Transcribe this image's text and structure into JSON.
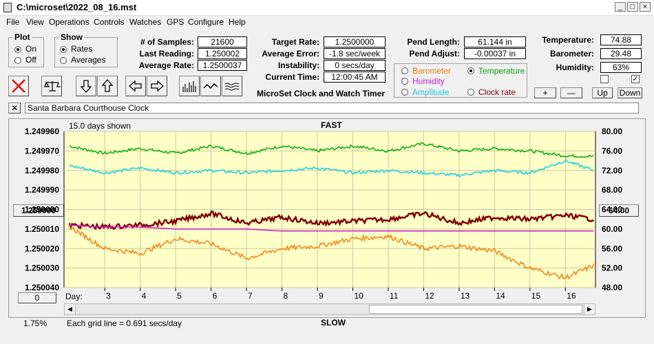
{
  "window": {
    "title": "C:\\microset\\2022_08_16.mst"
  },
  "menu": [
    "File",
    "View",
    "Operations",
    "Controls",
    "Watches",
    "GPS",
    "Configure",
    "Help"
  ],
  "plot_group": {
    "title": "Plot",
    "on": "On",
    "off": "Off",
    "selected": "On"
  },
  "show_group": {
    "title": "Show",
    "rates": "Rates",
    "averages": "Averages",
    "selected": "Rates"
  },
  "stats": {
    "samples_label": "# of Samples:",
    "samples": "21600",
    "last_label": "Last Reading:",
    "last": "1.250002",
    "avg_label": "Average Rate:",
    "avg": "1.2500037",
    "target_label": "Target Rate:",
    "target": "1.2500000",
    "avg_err_label": "Average Error:",
    "avg_err": "-1.8 sec/week",
    "instab_label": "Instability:",
    "instab": "0 secs/day",
    "time_label": "Current Time:",
    "time": "12:00:45 AM",
    "pend_len_label": "Pend Length:",
    "pend_len": "61.144 in",
    "pend_adj_label": "Pend Adjust:",
    "pend_adj": "-0.00037 in",
    "temp_label": "Temperature:",
    "temp": "74.88",
    "baro_label": "Barometer:",
    "baro": "29.48",
    "hum_label": "Humidity:",
    "hum": "63%"
  },
  "app_caption": "MicroSet Clock and Watch Timer",
  "aux_options": [
    {
      "label": "Barometer",
      "color": "#e07f10",
      "selected": false
    },
    {
      "label": "Temperature",
      "color": "#10a010",
      "selected": true
    },
    {
      "label": "Humidity",
      "color": "#c020c0",
      "selected": false
    },
    {
      "label": "Clock rate",
      "color": "#800000",
      "selected": false
    },
    {
      "label": "Amplitude",
      "color": "#20c8d8",
      "selected": false
    }
  ],
  "scale_buttons": [
    "+",
    "—",
    "Up",
    "Down"
  ],
  "checkboxes": [
    "",
    "✓"
  ],
  "watch_name": "Santa Barbara Courthouse Clock",
  "close_x": "✕",
  "graph": {
    "top_label": "FAST",
    "bottom_label": "SLOW",
    "days_shown": "15.0 days shown",
    "grid_note": "Each grid line = 0.691 secs/day",
    "left_button": "1.250000",
    "right_button": "64.00",
    "zero_button": "0",
    "percent": "1.75%",
    "day_label": "Day:",
    "left_ticks": [
      "1.249960",
      "1.249970",
      "1.249980",
      "1.249990",
      "1.250000",
      "1.250010",
      "1.250020",
      "1.250030",
      "1.250040"
    ],
    "right_ticks": [
      "80.00",
      "76.00",
      "72.00",
      "68.00",
      "64.00",
      "60.00",
      "56.00",
      "52.00",
      "48.00"
    ],
    "days": [
      "3",
      "4",
      "5",
      "6",
      "7",
      "8",
      "9",
      "10",
      "11",
      "12",
      "13",
      "14",
      "15",
      "16"
    ]
  },
  "chart_data": {
    "type": "line",
    "title": "",
    "xlabel": "Day:",
    "x_range": [
      1.85,
      16.85
    ],
    "ylim_left": [
      1.24996,
      1.25004
    ],
    "ylim_right": [
      48,
      80
    ],
    "series": [
      {
        "name": "Temperature",
        "axis": "right",
        "color": "#10b010",
        "x": [
          2,
          3,
          4,
          5,
          6,
          7,
          8,
          9,
          10,
          11,
          12,
          13,
          14,
          15,
          16,
          16.8
        ],
        "values": [
          77,
          75.5,
          76.5,
          75.5,
          77,
          75.5,
          77,
          76,
          77,
          76,
          77.5,
          76,
          76.5,
          76,
          75,
          74.9
        ]
      },
      {
        "name": "Amplitude",
        "axis": "right",
        "color": "#22d0e0",
        "x": [
          2,
          3,
          4,
          5,
          6,
          7,
          8,
          9,
          10,
          11,
          12,
          13,
          14,
          15,
          16,
          16.8
        ],
        "values": [
          73,
          71.5,
          72.5,
          71.5,
          72,
          71.5,
          72,
          72.5,
          71.5,
          72,
          71.5,
          71,
          72,
          71.5,
          74,
          72
        ]
      },
      {
        "name": "Clock rate",
        "axis": "left",
        "color": "#800000",
        "x": [
          2,
          3,
          4,
          5,
          6,
          7,
          8,
          9,
          10,
          11,
          12,
          13,
          14,
          15,
          16,
          16.8
        ],
        "values": [
          1.250008,
          1.250009,
          1.250008,
          1.250006,
          1.250002,
          1.250007,
          1.250004,
          1.250007,
          1.250006,
          1.250005,
          1.250002,
          1.250007,
          1.250004,
          1.250005,
          1.250003,
          1.250005
        ]
      },
      {
        "name": "Humidity",
        "axis": "left",
        "color": "#d020d0",
        "x": [
          2,
          3,
          4,
          5,
          6,
          7,
          8,
          9,
          10,
          11,
          12,
          13,
          14,
          15,
          16,
          16.8
        ],
        "values": [
          1.250008,
          1.250009,
          1.250009,
          1.25001,
          1.25001,
          1.25001,
          1.250011,
          1.250011,
          1.250011,
          1.250011,
          1.250011,
          1.250011,
          1.250011,
          1.250011,
          1.250011,
          1.250011
        ]
      },
      {
        "name": "Barometer",
        "axis": "right",
        "color": "#f08a1a",
        "x": [
          2,
          3,
          4,
          5,
          6,
          7,
          8,
          9,
          10,
          11,
          12,
          13,
          14,
          15,
          16,
          16.8
        ],
        "values": [
          60.5,
          56,
          55,
          58,
          57,
          54,
          56,
          56.5,
          58,
          58.5,
          56,
          56.5,
          55.5,
          52,
          50,
          52.5
        ]
      }
    ]
  }
}
